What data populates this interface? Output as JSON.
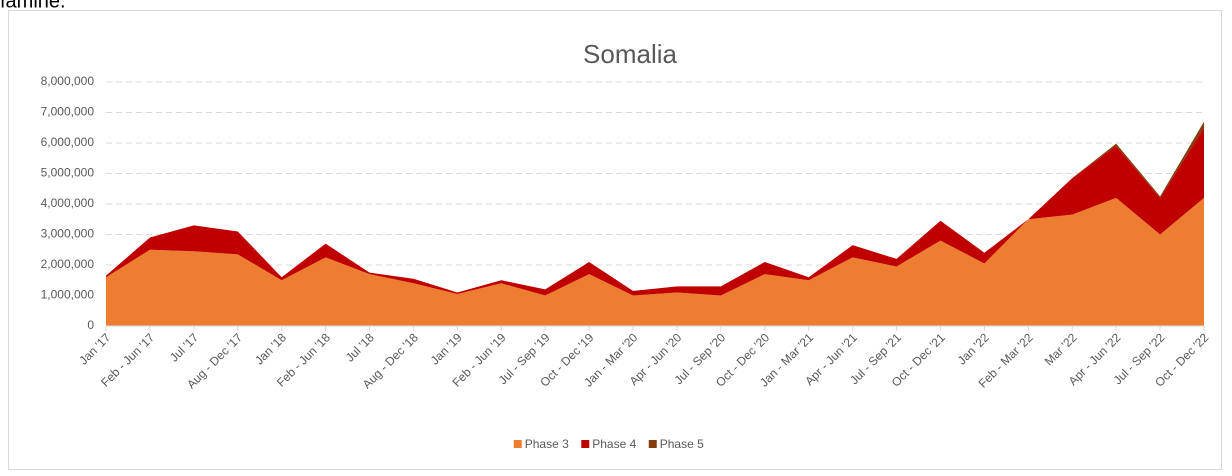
{
  "page_text": "famine.",
  "chart_data": {
    "type": "stacked_area",
    "title": "Somalia",
    "categories": [
      "Jan '17",
      "Feb - Jun '17",
      "Jul '17",
      "Aug - Dec '17",
      "Jan '18",
      "Feb - Jun '18",
      "Jul '18",
      "Aug - Dec '18",
      "Jan '19",
      "Feb - Jun '19",
      "Jul - Sep '19",
      "Oct - Dec '19",
      "Jan - Mar '20",
      "Apr - Jun '20",
      "Jul - Sep '20",
      "Oct - Dec '20",
      "Jan - Mar '21",
      "Apr - Jun '21",
      "Jul - Sep '21",
      "Oct - Dec '21",
      "Jan '22",
      "Feb - Mar '22",
      "Mar '22",
      "Apr - Jun '22",
      "Jul - Sep '22",
      "Oct - Dec '22"
    ],
    "series": [
      {
        "name": "Phase 3",
        "color": "#ed7d31",
        "values": [
          1600000,
          2500000,
          2450000,
          2350000,
          1500000,
          2250000,
          1700000,
          1400000,
          1050000,
          1400000,
          1000000,
          1700000,
          1000000,
          1100000,
          1000000,
          1700000,
          1500000,
          2250000,
          1950000,
          2800000,
          2050000,
          3500000,
          3650000,
          4200000,
          3000000,
          4200000
        ]
      },
      {
        "name": "Phase 4",
        "color": "#c00000",
        "values": [
          50000,
          400000,
          850000,
          750000,
          100000,
          450000,
          50000,
          150000,
          50000,
          100000,
          200000,
          400000,
          150000,
          200000,
          300000,
          400000,
          100000,
          400000,
          250000,
          650000,
          350000,
          0,
          1200000,
          1700000,
          1200000,
          2300000
        ]
      },
      {
        "name": "Phase 5",
        "color": "#843c0c",
        "values": [
          0,
          0,
          0,
          0,
          0,
          0,
          0,
          0,
          0,
          0,
          0,
          0,
          0,
          0,
          0,
          0,
          0,
          0,
          0,
          0,
          0,
          0,
          0,
          80000,
          50000,
          200000
        ]
      }
    ],
    "ylim": [
      0,
      8000000
    ],
    "yticks": [
      0,
      {
        "value": 1000000,
        "label": "1,000,000"
      },
      {
        "value": 2000000,
        "label": "2,000,000"
      },
      {
        "value": 3000000,
        "label": "3,000,000"
      },
      {
        "value": 4000000,
        "label": "4,000,000"
      },
      {
        "value": 5000000,
        "label": "5,000,000"
      },
      {
        "value": 6000000,
        "label": "6,000,000"
      },
      {
        "value": 7000000,
        "label": "7,000,000"
      },
      {
        "value": 8000000,
        "label": "8,000,000"
      }
    ],
    "grid": true,
    "legend": "bottom"
  }
}
